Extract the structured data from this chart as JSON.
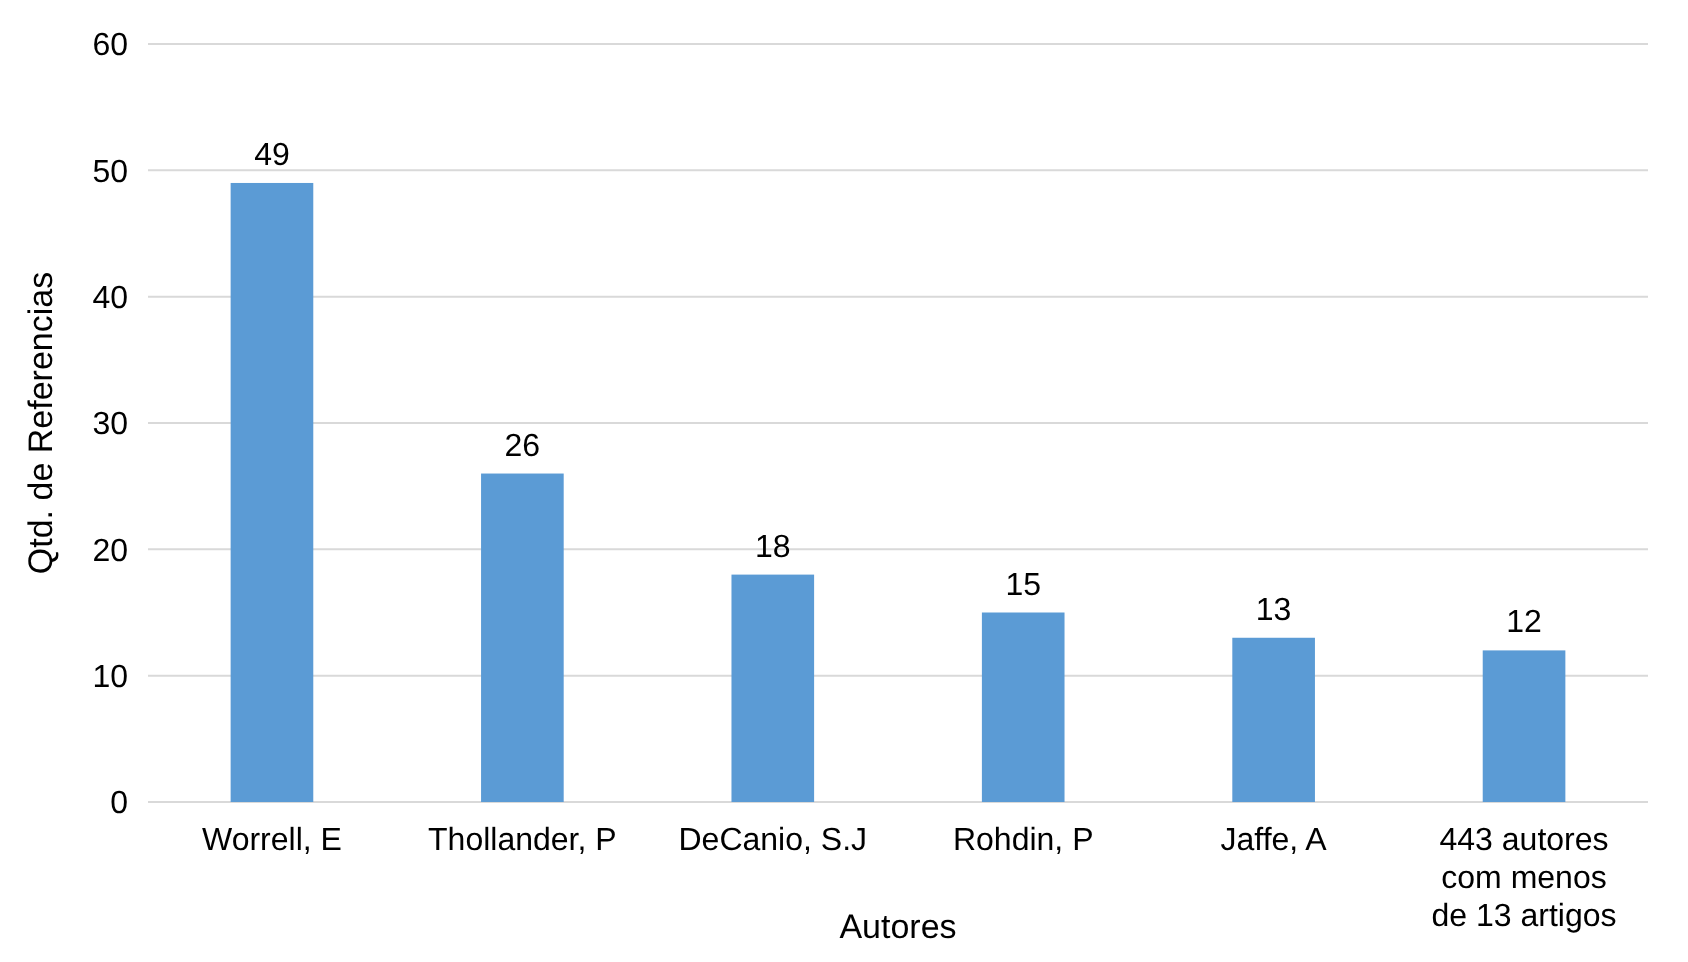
{
  "chart_data": {
    "type": "bar",
    "xlabel": "Autores",
    "ylabel": "Qtd. de Referencias",
    "categories": [
      "Worrell, E",
      "Thollander, P",
      "DeCanio, S.J",
      "Rohdin, P",
      "Jaffe, A",
      "443 autores\ncom menos\nde 13 artigos"
    ],
    "values": [
      49,
      26,
      18,
      15,
      13,
      12
    ],
    "color": "#5b9bd5",
    "ylim": [
      0,
      60
    ],
    "yticks": [
      0,
      10,
      20,
      30,
      40,
      50,
      60
    ],
    "grid": "y",
    "data_labels": true
  }
}
